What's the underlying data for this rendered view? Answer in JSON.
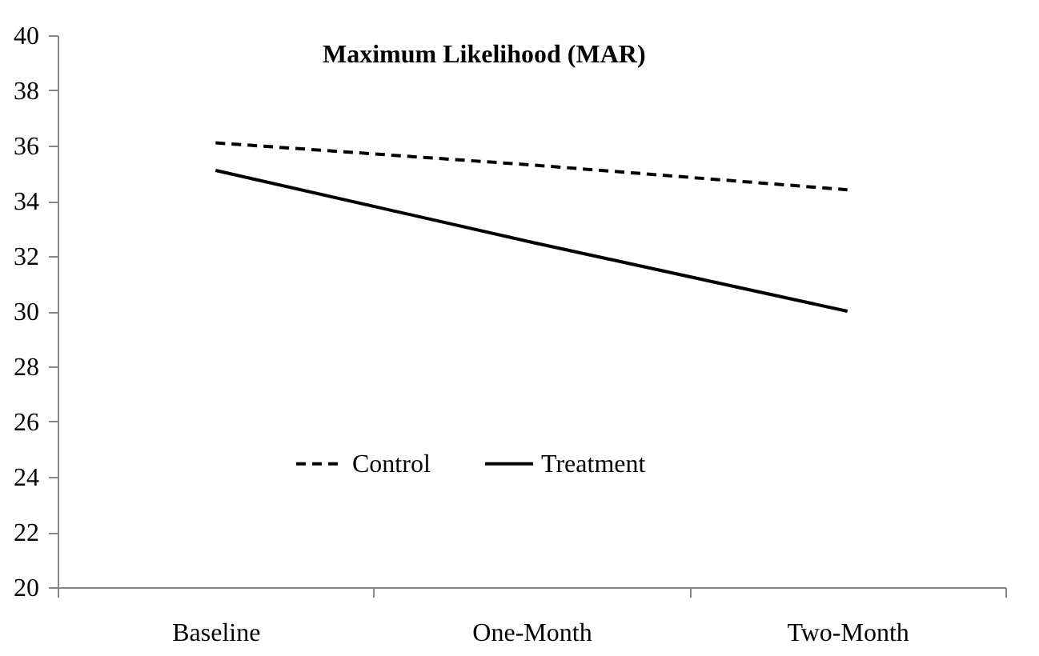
{
  "chart_data": {
    "type": "line",
    "title": "Maximum Likelihood (MAR)",
    "categories": [
      "Baseline",
      "One-Month",
      "Two-Month"
    ],
    "series": [
      {
        "name": "Control",
        "color": "#000000",
        "line_style": "dashed",
        "values": [
          36.1,
          35.3,
          34.4
        ]
      },
      {
        "name": "Treatment",
        "color": "#000000",
        "line_style": "solid",
        "values": [
          35.1,
          32.5,
          30.0
        ]
      }
    ],
    "ylim": [
      20,
      40
    ],
    "yticks": [
      20,
      22,
      24,
      26,
      28,
      30,
      32,
      34,
      36,
      38,
      40
    ],
    "grid": false,
    "legend": "bottom",
    "marker": "none"
  }
}
